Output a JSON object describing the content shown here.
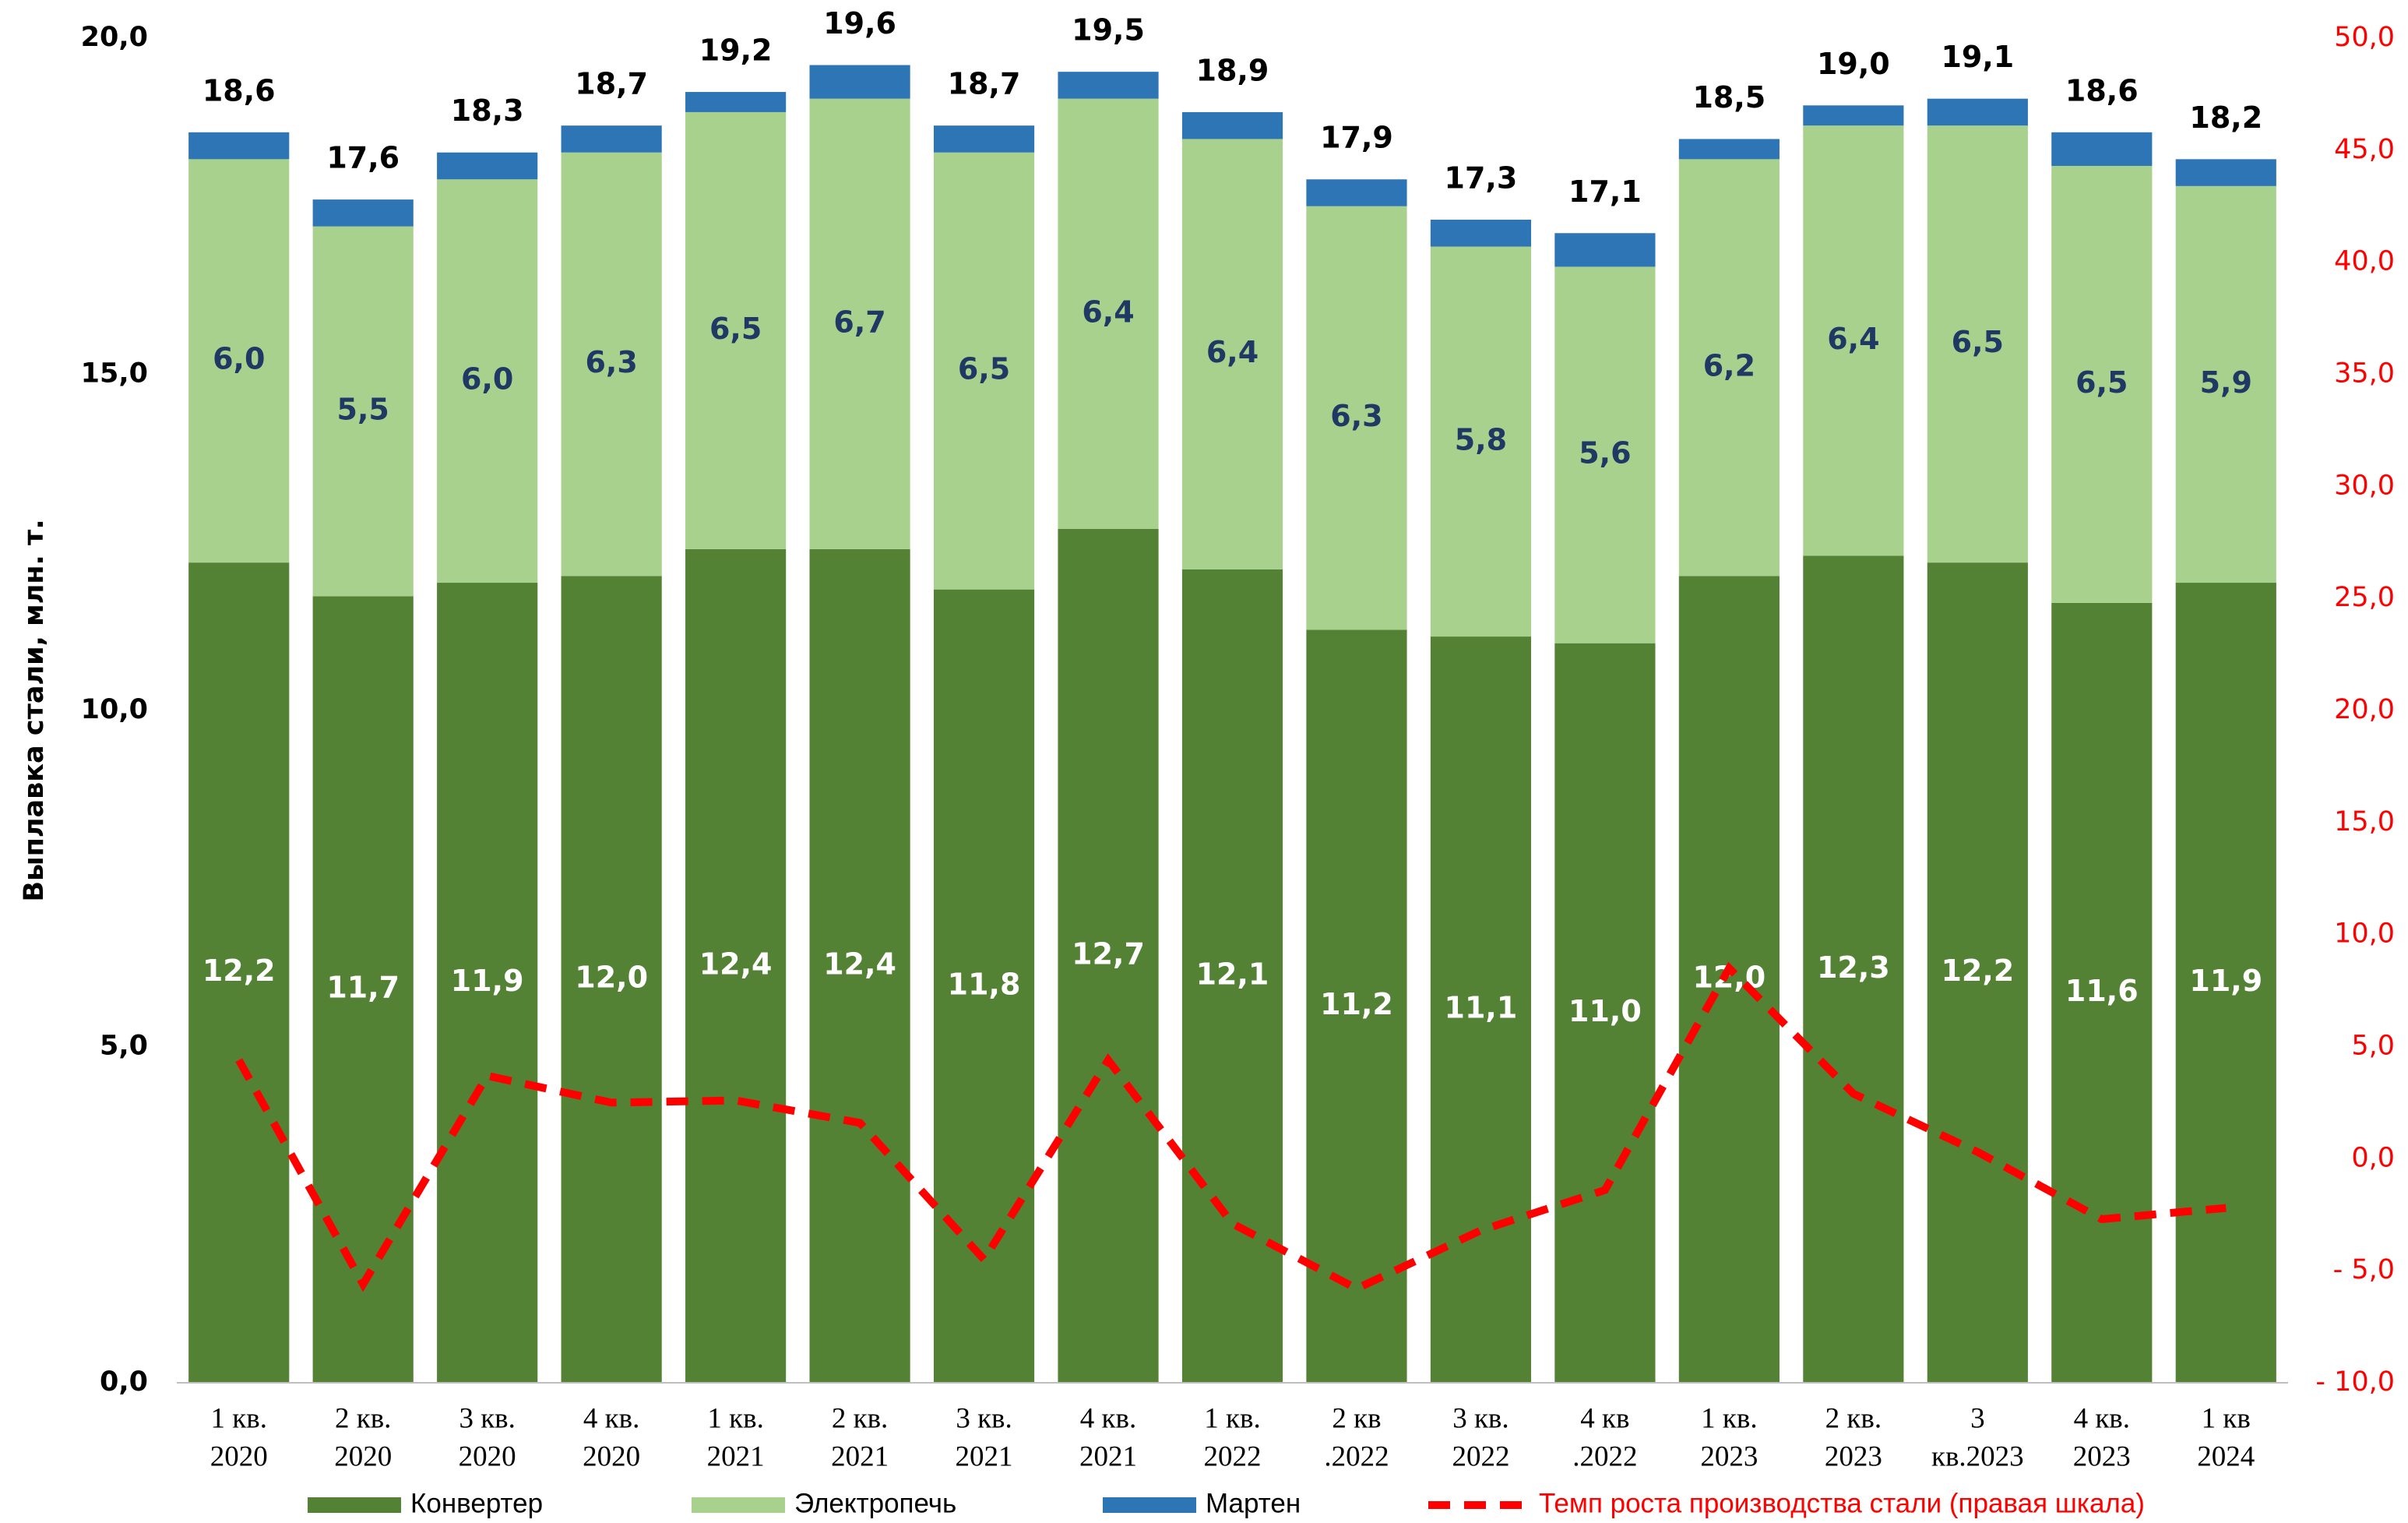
{
  "chart_data": {
    "type": "stacked_bar",
    "y_label": "Выплавка стали, млн. т.",
    "categories": [
      [
        "1 кв.",
        "2020"
      ],
      [
        "2 кв.",
        "2020"
      ],
      [
        "3 кв.",
        "2020"
      ],
      [
        "4 кв.",
        "2020"
      ],
      [
        "1 кв.",
        "2021"
      ],
      [
        "2 кв.",
        "2021"
      ],
      [
        "3 кв.",
        "2021"
      ],
      [
        "4 кв.",
        "2021"
      ],
      [
        "1 кв.",
        "2022"
      ],
      [
        "2 кв",
        ".2022"
      ],
      [
        "3 кв.",
        "2022"
      ],
      [
        "4 кв",
        ".2022"
      ],
      [
        "1 кв.",
        "2023"
      ],
      [
        "2 кв.",
        "2023"
      ],
      [
        "3",
        "кв.2023"
      ],
      [
        "4 кв.",
        "2023"
      ],
      [
        "1 кв",
        "2024"
      ]
    ],
    "series": [
      {
        "name": "Конвертер",
        "color": "#548235",
        "label_color": "#ffffff",
        "values": [
          12.2,
          11.7,
          11.9,
          12.0,
          12.4,
          12.4,
          11.8,
          12.7,
          12.1,
          11.2,
          11.1,
          11.0,
          12.0,
          12.3,
          12.2,
          11.6,
          11.9
        ],
        "value_labels": [
          "12,2",
          "11,7",
          "11,9",
          "12,0",
          "12,4",
          "12,4",
          "11,8",
          "12,7",
          "12,1",
          "11,2",
          "11,1",
          "11,0",
          "12,0",
          "12,3",
          "12,2",
          "11,6",
          "11,9"
        ]
      },
      {
        "name": "Электропечь",
        "color": "#a9d18e",
        "label_color": "#1f3864",
        "values": [
          6.0,
          5.5,
          6.0,
          6.3,
          6.5,
          6.7,
          6.5,
          6.4,
          6.4,
          6.3,
          5.8,
          5.6,
          6.2,
          6.4,
          6.5,
          6.5,
          5.9
        ],
        "value_labels": [
          "6,0",
          "5,5",
          "6,0",
          "6,3",
          "6,5",
          "6,7",
          "6,5",
          "6,4",
          "6,4",
          "6,3",
          "5,8",
          "5,6",
          "6,2",
          "6,4",
          "6,5",
          "6,5",
          "5,9"
        ]
      },
      {
        "name": "Мартен",
        "color": "#2e75b6",
        "values": [
          0.4,
          0.4,
          0.4,
          0.4,
          0.3,
          0.5,
          0.4,
          0.4,
          0.4,
          0.4,
          0.4,
          0.5,
          0.3,
          0.3,
          0.4,
          0.5,
          0.4
        ]
      },
      {
        "name": "Темп роста производства стали (правая шкала)",
        "color": "#ff0000",
        "axis": "y2",
        "dashed": true,
        "values": [
          4.4,
          -5.6,
          3.7,
          2.5,
          2.6,
          1.6,
          -4.5,
          4.4,
          -2.9,
          -5.8,
          -3.2,
          -1.4,
          8.5,
          2.9,
          0.3,
          -2.7,
          -2.2
        ]
      }
    ],
    "totals": {
      "values": [
        18.6,
        17.6,
        18.3,
        18.7,
        19.2,
        19.6,
        18.7,
        19.5,
        18.9,
        17.9,
        17.3,
        17.1,
        18.5,
        19.0,
        19.1,
        18.6,
        18.2
      ],
      "value_labels": [
        "18,6",
        "17,6",
        "18,3",
        "18,7",
        "19,2",
        "19,6",
        "18,7",
        "19,5",
        "18,9",
        "17,9",
        "17,3",
        "17,1",
        "18,5",
        "19,0",
        "19,1",
        "18,6",
        "18,2"
      ]
    },
    "ylim": [
      0,
      20
    ],
    "yticks": [
      {
        "value": 0,
        "label": "0,0"
      },
      {
        "value": 5,
        "label": "5,0"
      },
      {
        "value": 10,
        "label": "10,0"
      },
      {
        "value": 15,
        "label": "15,0"
      },
      {
        "value": 20,
        "label": "20,0"
      }
    ],
    "y2lim": [
      -10,
      50
    ],
    "y2ticks": [
      {
        "value": -10,
        "label": "- 10,0"
      },
      {
        "value": -5,
        "label": "- 5,0"
      },
      {
        "value": 0,
        "label": "0,0"
      },
      {
        "value": 5,
        "label": "5,0"
      },
      {
        "value": 10,
        "label": "10,0"
      },
      {
        "value": 15,
        "label": "15,0"
      },
      {
        "value": 20,
        "label": "20,0"
      },
      {
        "value": 25,
        "label": "25,0"
      },
      {
        "value": 30,
        "label": "30,0"
      },
      {
        "value": 35,
        "label": "35,0"
      },
      {
        "value": 40,
        "label": "40,0"
      },
      {
        "value": 45,
        "label": "45,0"
      },
      {
        "value": 50,
        "label": "50,0"
      }
    ],
    "y2_color": "#ff0000",
    "grid": false,
    "legend": "bottom"
  }
}
